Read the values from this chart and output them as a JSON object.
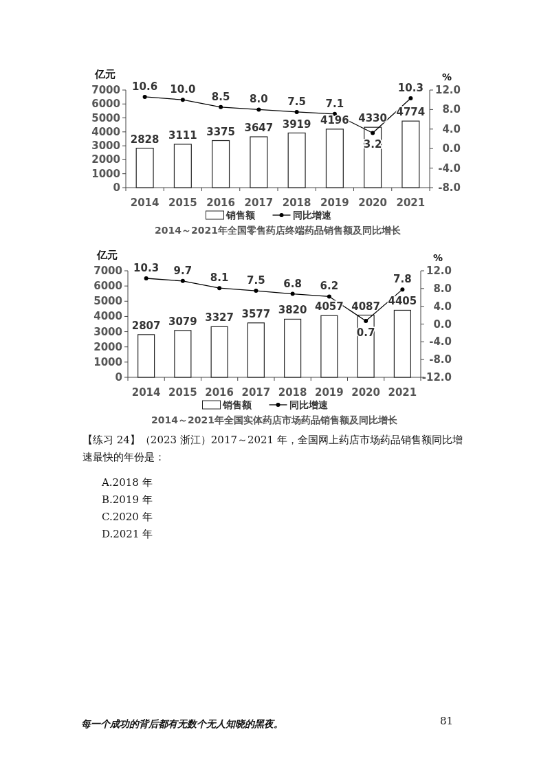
{
  "chart_data": [
    {
      "type": "bar",
      "title": "2014～2021年全国零售药店终端药品销售额及同比增长",
      "ylabel": "亿元",
      "y2label": "%",
      "categories": [
        "2014",
        "2015",
        "2016",
        "2017",
        "2018",
        "2019",
        "2020",
        "2021"
      ],
      "series": [
        {
          "name": "销售额",
          "color": "#ffffff",
          "values": [
            2828,
            3111,
            3375,
            3647,
            3919,
            4196,
            4330,
            4774
          ],
          "value_labels": [
            "2828",
            "3111",
            "3375",
            "3647",
            "3919",
            "4196",
            "4330",
            "4774"
          ]
        },
        {
          "name": "同比增速",
          "type": "line",
          "axis": "y2",
          "color": "#000000",
          "marker": "circle",
          "values": [
            10.6,
            10.0,
            8.5,
            8.0,
            7.5,
            7.1,
            3.2,
            10.3
          ],
          "value_labels": [
            "10.6",
            "10.0",
            "8.5",
            "8.0",
            "7.5",
            "7.1",
            "3.2",
            "10.3"
          ]
        }
      ],
      "ylim": [
        0,
        7000
      ],
      "yticks": [
        0,
        1000,
        2000,
        3000,
        4000,
        5000,
        6000,
        7000
      ],
      "y2lim": [
        -8,
        12
      ],
      "y2ticks": [
        {
          "value": -8,
          "label": "-8.0"
        },
        {
          "value": -4,
          "label": "-4.0"
        },
        {
          "value": 0,
          "label": "0.0"
        },
        {
          "value": 4,
          "label": "4.0"
        },
        {
          "value": 8,
          "label": "8.0"
        },
        {
          "value": 12,
          "label": "12.0"
        }
      ],
      "legend": "bottom"
    },
    {
      "type": "bar",
      "title": "2014～2021年全国实体药店市场药品销售额及同比增长",
      "ylabel": "亿元",
      "y2label": "%",
      "categories": [
        "2014",
        "2015",
        "2016",
        "2017",
        "2018",
        "2019",
        "2020",
        "2021"
      ],
      "series": [
        {
          "name": "销售额",
          "color": "#ffffff",
          "values": [
            2807,
            3079,
            3327,
            3577,
            3820,
            4057,
            4087,
            4405
          ],
          "value_labels": [
            "2807",
            "3079",
            "3327",
            "3577",
            "3820",
            "4057",
            "4087",
            "4405"
          ]
        },
        {
          "name": "同比增速",
          "type": "line",
          "axis": "y2",
          "color": "#000000",
          "marker": "circle",
          "values": [
            10.3,
            9.7,
            8.1,
            7.5,
            6.8,
            6.2,
            0.7,
            7.8
          ],
          "value_labels": [
            "10.3",
            "9.7",
            "8.1",
            "7.5",
            "6.8",
            "6.2",
            "0.7",
            "7.8"
          ]
        }
      ],
      "ylim": [
        0,
        7000
      ],
      "yticks": [
        0,
        1000,
        2000,
        3000,
        4000,
        5000,
        6000,
        7000
      ],
      "y2lim": [
        -12,
        12
      ],
      "y2ticks": [
        {
          "value": -12,
          "label": "-12.0"
        },
        {
          "value": -8,
          "label": "-8.0"
        },
        {
          "value": -4,
          "label": "-4.0"
        },
        {
          "value": 0,
          "label": "0.0"
        },
        {
          "value": 4,
          "label": "4.0"
        },
        {
          "value": 8,
          "label": "8.0"
        },
        {
          "value": 12,
          "label": "12.0"
        }
      ],
      "legend": "bottom",
      "annotations": [
        "【练习 24】（2023 浙江）2017～2021 年，全国网上药店市场药品销售额同比增速最快的年份是：",
        "A.2018 年",
        "B.2019 年",
        "C.2020 年",
        "D.2021 年",
        "每一个成功的背后都有无数个无人知晓的黑夜。",
        "81"
      ]
    }
  ]
}
